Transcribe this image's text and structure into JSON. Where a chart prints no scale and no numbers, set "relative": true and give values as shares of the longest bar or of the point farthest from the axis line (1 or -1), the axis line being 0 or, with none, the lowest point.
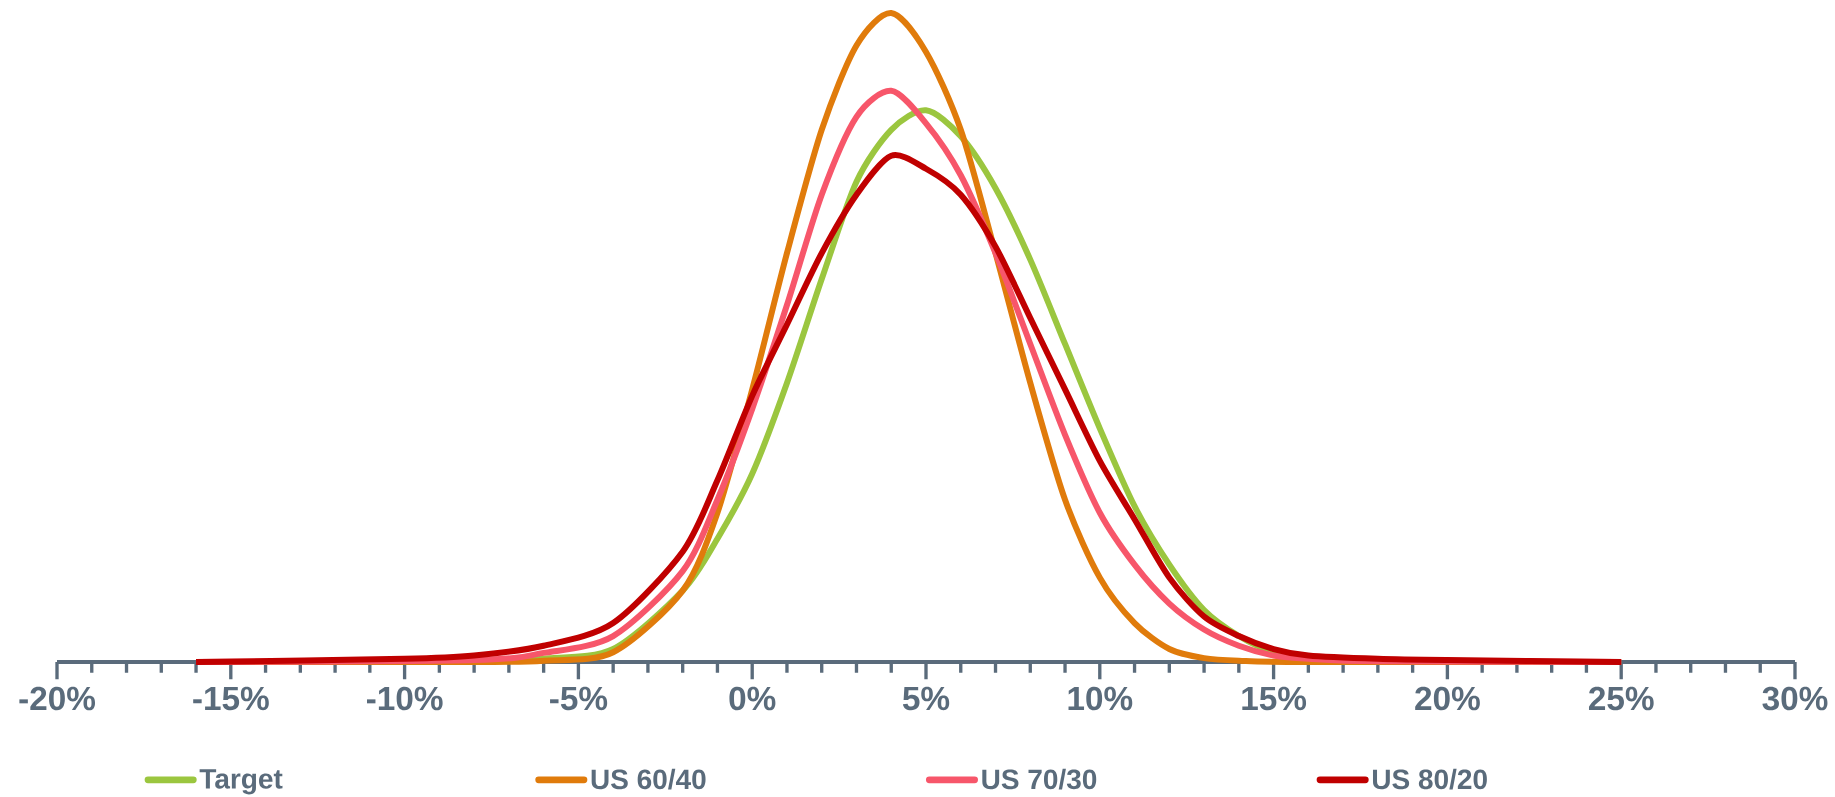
{
  "chart_data": {
    "type": "line",
    "relative": true,
    "xlim": [
      -20,
      30
    ],
    "xticks": [
      {
        "value": -20,
        "label": "-20%"
      },
      {
        "value": -15,
        "label": "-15%"
      },
      {
        "value": -10,
        "label": "-10%"
      },
      {
        "value": -5,
        "label": "-5%"
      },
      {
        "value": 0,
        "label": "0%"
      },
      {
        "value": 5,
        "label": "5%"
      },
      {
        "value": 10,
        "label": "10%"
      },
      {
        "value": 15,
        "label": "15%"
      },
      {
        "value": 20,
        "label": "20%"
      },
      {
        "value": 25,
        "label": "25%"
      },
      {
        "value": 30,
        "label": "30%"
      }
    ],
    "legend": "bottom",
    "grid": false,
    "marker": "none",
    "line_style": "solid",
    "series": [
      {
        "name": "Target",
        "color": "#9bc63f",
        "x": [
          -16,
          -8,
          -6,
          -4,
          -2,
          -1,
          0,
          1,
          2,
          3,
          4,
          5,
          6,
          7,
          8,
          9,
          10,
          11,
          12,
          13,
          14,
          15,
          16
        ],
        "values": [
          0,
          0.001,
          0.005,
          0.02,
          0.11,
          0.19,
          0.29,
          0.43,
          0.59,
          0.74,
          0.82,
          0.85,
          0.81,
          0.73,
          0.62,
          0.49,
          0.36,
          0.24,
          0.15,
          0.08,
          0.04,
          0.015,
          0.006
        ]
      },
      {
        "name": "US 60/40",
        "color": "#e07b0b",
        "x": [
          -16,
          -8,
          -6,
          -4,
          -2,
          -1,
          0,
          1,
          2,
          3,
          4,
          5,
          6,
          7,
          8,
          9,
          10,
          11,
          12,
          13,
          14,
          16,
          25
        ],
        "values": [
          0,
          0,
          0.002,
          0.015,
          0.11,
          0.23,
          0.42,
          0.63,
          0.82,
          0.95,
          1,
          0.94,
          0.82,
          0.63,
          0.43,
          0.25,
          0.13,
          0.06,
          0.02,
          0.006,
          0.002,
          0,
          0
        ]
      },
      {
        "name": "US 70/30",
        "color": "#f7566a",
        "x": [
          -16,
          -8,
          -6,
          -4,
          -2,
          -1,
          0,
          1,
          2,
          3,
          4,
          5,
          6,
          7,
          8,
          9,
          10,
          11,
          12,
          13,
          14,
          15,
          16,
          18,
          25
        ],
        "values": [
          0,
          0.003,
          0.014,
          0.04,
          0.14,
          0.25,
          0.39,
          0.55,
          0.72,
          0.84,
          0.88,
          0.83,
          0.75,
          0.63,
          0.49,
          0.35,
          0.23,
          0.15,
          0.09,
          0.05,
          0.025,
          0.01,
          0.005,
          0.001,
          0
        ]
      },
      {
        "name": "US 80/20",
        "color": "#c00000",
        "x": [
          -16,
          -10,
          -8,
          -6,
          -4,
          -2,
          -1,
          0,
          1,
          2,
          3,
          4,
          5,
          6,
          7,
          8,
          9,
          10,
          11,
          12,
          13,
          14,
          15,
          16,
          18,
          20,
          25
        ],
        "values": [
          0,
          0.005,
          0.01,
          0.025,
          0.06,
          0.17,
          0.28,
          0.41,
          0.52,
          0.63,
          0.72,
          0.78,
          0.76,
          0.72,
          0.64,
          0.53,
          0.42,
          0.31,
          0.22,
          0.13,
          0.07,
          0.04,
          0.02,
          0.01,
          0.005,
          0.003,
          0
        ]
      }
    ]
  }
}
